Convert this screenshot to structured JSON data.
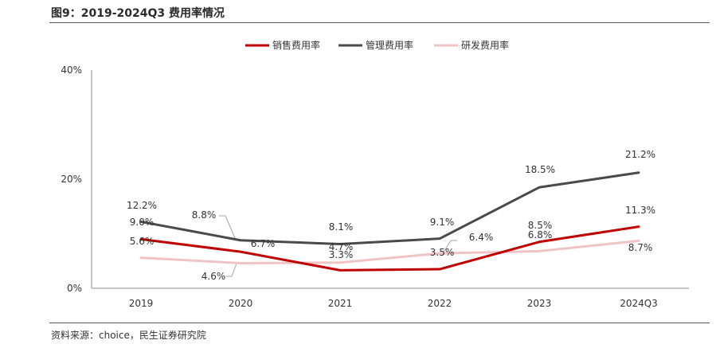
{
  "title": "图9：2019-2024Q3 费用率情况",
  "source": "资料来源：choice，民生证券研究院",
  "chart_data": {
    "type": "line",
    "categories": [
      "2019",
      "2020",
      "2021",
      "2022",
      "2023",
      "2024Q3"
    ],
    "ylim": [
      0,
      40
    ],
    "yticks": [
      "0%",
      "20%",
      "40%"
    ],
    "ytick_values": [
      0,
      20,
      40
    ],
    "grid": false,
    "legend_position": "top-center",
    "series": [
      {
        "name": "销售费用率",
        "color": "#c00000",
        "values": [
          9.0,
          6.7,
          3.3,
          3.5,
          8.5,
          11.3
        ],
        "labels": [
          "9.0%",
          "6.7%",
          "3.3%",
          "3.5%",
          "8.5%",
          "11.3%"
        ]
      },
      {
        "name": "管理费用率",
        "color": "#4a4a4a",
        "values": [
          12.2,
          8.8,
          8.1,
          9.1,
          18.5,
          21.2
        ],
        "labels": [
          "12.2%",
          "8.8%",
          "8.1%",
          "9.1%",
          "18.5%",
          "21.2%"
        ]
      },
      {
        "name": "研发费用率",
        "color": "#f0c4c4",
        "values": [
          5.6,
          4.6,
          4.7,
          6.4,
          6.8,
          8.7
        ],
        "labels": [
          "5.6%",
          "4.6%",
          "4.7%",
          "6.4%",
          "6.8%",
          "8.7%"
        ]
      }
    ]
  }
}
